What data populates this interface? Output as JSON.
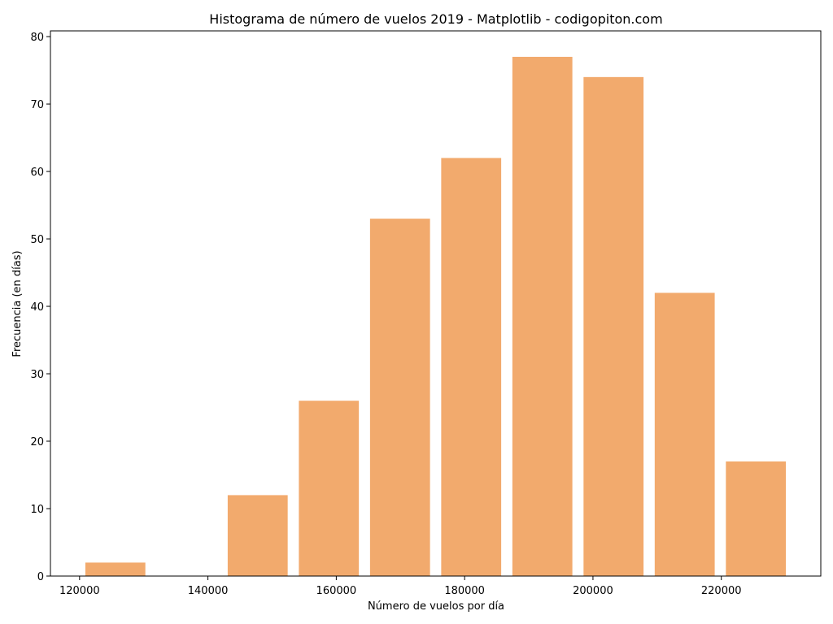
{
  "chart_data": {
    "type": "bar",
    "title": "Histograma de número de vuelos 2019 - Matplotlib - codigopiton.com",
    "xlabel": "Número de vuelos por día",
    "ylabel": "Frecuencia (en días)",
    "bins": [
      {
        "x0": 120900,
        "x1": 130250,
        "count": 2
      },
      {
        "x0": 131990,
        "x1": 141340,
        "count": 0
      },
      {
        "x0": 143080,
        "x1": 152430,
        "count": 12
      },
      {
        "x0": 154170,
        "x1": 163520,
        "count": 26
      },
      {
        "x0": 165260,
        "x1": 174610,
        "count": 53
      },
      {
        "x0": 176350,
        "x1": 185700,
        "count": 62
      },
      {
        "x0": 187440,
        "x1": 196790,
        "count": 77
      },
      {
        "x0": 198530,
        "x1": 207880,
        "count": 74
      },
      {
        "x0": 209620,
        "x1": 218970,
        "count": 42
      },
      {
        "x0": 220710,
        "x1": 230060,
        "count": 17
      }
    ],
    "xlim": [
      115460,
      235500
    ],
    "ylim": [
      0,
      80.85
    ],
    "xticks": [
      120000,
      140000,
      160000,
      180000,
      200000,
      220000
    ],
    "xtick_labels": [
      "120000",
      "140000",
      "160000",
      "180000",
      "200000",
      "220000"
    ],
    "yticks": [
      0,
      10,
      20,
      30,
      40,
      50,
      60,
      70,
      80
    ],
    "ytick_labels": [
      "0",
      "10",
      "20",
      "30",
      "40",
      "50",
      "60",
      "70",
      "80"
    ],
    "bar_color": "#f2aa6d",
    "grid": false
  }
}
